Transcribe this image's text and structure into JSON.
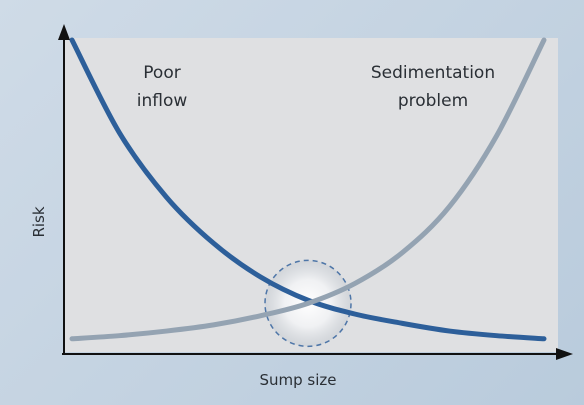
{
  "chart_data": {
    "type": "line",
    "title": "",
    "xlabel": "Sump size",
    "ylabel": "Risk",
    "xlim": [
      0,
      10
    ],
    "ylim": [
      0,
      10
    ],
    "grid": false,
    "annotations": [
      {
        "text_lines": [
          "Poor",
          "inflow"
        ],
        "series": "poor-inflow"
      },
      {
        "text_lines": [
          "Sedimentation",
          "problem"
        ],
        "series": "sedimentation"
      }
    ],
    "highlight": {
      "x": 5,
      "y": 1.45,
      "label": "optimum intersection"
    },
    "series": [
      {
        "id": "poor-inflow",
        "color": "#2d5f9a",
        "x": [
          0,
          1,
          2,
          3,
          4,
          5,
          6,
          7,
          8,
          9,
          10
        ],
        "y": [
          10.0,
          7.0,
          4.9,
          3.4,
          2.3,
          1.55,
          1.1,
          0.8,
          0.55,
          0.4,
          0.3
        ]
      },
      {
        "id": "sedimentation",
        "color": "#94a3b2",
        "x": [
          0,
          1,
          2,
          3,
          4,
          5,
          6,
          7,
          8,
          9,
          10
        ],
        "y": [
          0.3,
          0.4,
          0.55,
          0.75,
          1.05,
          1.45,
          2.1,
          3.1,
          4.6,
          6.9,
          10.0
        ]
      }
    ]
  }
}
